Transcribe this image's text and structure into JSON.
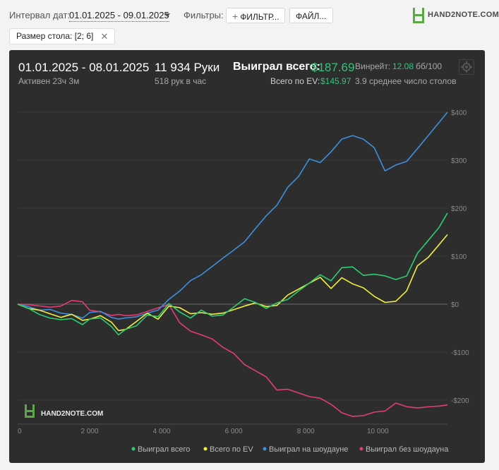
{
  "filters": {
    "date_label": "Интервал дат:",
    "date_value": "01.01.2025 - 09.01.2025",
    "filters_label": "Фильтры:",
    "filter_button": "ФИЛЬТР...",
    "file_button": "ФАЙЛ...",
    "tag": "Размер стола: [2; 6]"
  },
  "logo": {
    "text": "HAND2NOTE.COM",
    "watermark": "HAND2NOTE.COM"
  },
  "summary": {
    "range": "01.01.2025 - 08.01.2025",
    "active": "Активен 23ч 3м",
    "hands": "11 934 Руки",
    "hands_per_hour": "518 рук в час",
    "won_label": "Выиграл всего:",
    "won_value": "$187.69",
    "ev_label": "Всего по EV:",
    "ev_value": "$145.97",
    "winrate_label": "Винрейт:",
    "winrate_value": "12.08",
    "winrate_unit": "бб/100",
    "tables": "3.9 среднее число столов"
  },
  "colors": {
    "green": "#2ecc71",
    "yellow": "#f2f03b",
    "blue": "#3d8fe0",
    "pink": "#e23d76",
    "panel": "#2d2d2d"
  },
  "chart_data": {
    "type": "line",
    "xlim": [
      0,
      11934
    ],
    "ylim": [
      -250,
      400
    ],
    "x_ticks": [
      0,
      2000,
      4000,
      6000,
      8000,
      10000
    ],
    "x_tick_labels": [
      "0",
      "2 000",
      "4 000",
      "6 000",
      "8 000",
      "10 000"
    ],
    "y_ticks": [
      400,
      300,
      200,
      100,
      0,
      -100,
      -200
    ],
    "y_tick_labels": [
      "$400",
      "$300",
      "$200",
      "$100",
      "$0",
      "-$100",
      "-$200"
    ],
    "legend_position": "bottom",
    "x": [
      0,
      300,
      600,
      900,
      1200,
      1500,
      1800,
      2000,
      2300,
      2600,
      2800,
      3000,
      3300,
      3600,
      3900,
      4200,
      4500,
      4800,
      5100,
      5400,
      5700,
      6000,
      6300,
      6600,
      6900,
      7200,
      7500,
      7800,
      8100,
      8400,
      8700,
      9000,
      9300,
      9600,
      9900,
      10200,
      10500,
      10800,
      11100,
      11400,
      11700,
      11934
    ],
    "series": [
      {
        "name": "Выиграл всего",
        "color": "green",
        "values": [
          0,
          -10,
          -20,
          -25,
          -35,
          -30,
          -40,
          -35,
          -30,
          -45,
          -60,
          -55,
          -45,
          -20,
          -30,
          0,
          -15,
          -25,
          -15,
          -25,
          -20,
          -10,
          10,
          5,
          -5,
          0,
          10,
          30,
          40,
          60,
          50,
          80,
          75,
          60,
          65,
          55,
          50,
          60,
          110,
          130,
          160,
          190
        ]
      },
      {
        "name": "Всего по EV",
        "color": "yellow",
        "values": [
          0,
          -5,
          -15,
          -20,
          -25,
          -25,
          -35,
          -30,
          -20,
          -40,
          -55,
          -50,
          -40,
          -20,
          -30,
          0,
          -10,
          -20,
          -15,
          -25,
          -20,
          -10,
          0,
          0,
          -5,
          0,
          15,
          30,
          45,
          60,
          30,
          55,
          45,
          30,
          15,
          5,
          10,
          25,
          80,
          100,
          120,
          145
        ]
      },
      {
        "name": "Выиграл на шоудауне",
        "color": "blue",
        "values": [
          0,
          -5,
          -10,
          -15,
          -20,
          -20,
          -25,
          -20,
          -15,
          -25,
          -35,
          -30,
          -25,
          -15,
          -15,
          10,
          30,
          45,
          60,
          80,
          100,
          110,
          130,
          160,
          180,
          205,
          245,
          270,
          300,
          295,
          320,
          340,
          350,
          345,
          330,
          275,
          290,
          300,
          320,
          350,
          380,
          400
        ]
      },
      {
        "name": "Выиграл без шоудауна",
        "color": "pink",
        "values": [
          0,
          -5,
          -5,
          -5,
          0,
          5,
          5,
          -10,
          -20,
          -25,
          -20,
          -20,
          -25,
          -15,
          -5,
          -5,
          -40,
          -55,
          -60,
          -75,
          -90,
          -100,
          -130,
          -140,
          -150,
          -175,
          -180,
          -185,
          -190,
          -200,
          -210,
          -225,
          -230,
          -235,
          -225,
          -220,
          -210,
          -215,
          -215,
          -210,
          -215,
          -210
        ]
      }
    ]
  }
}
